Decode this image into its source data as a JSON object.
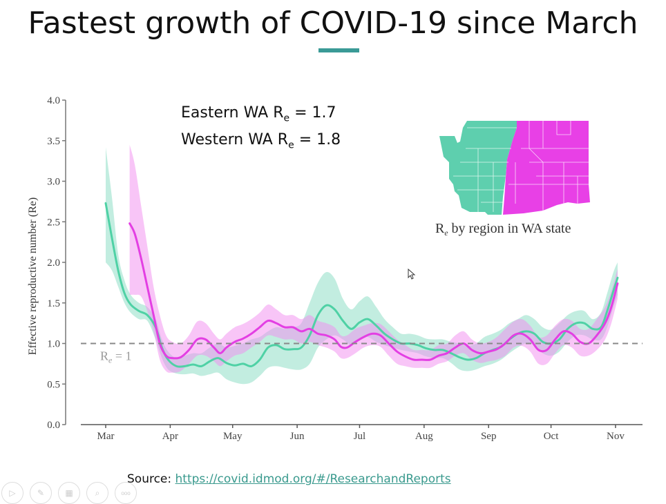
{
  "slide": {
    "title": "Fastest growth of COVID-19 since March",
    "accent_color": "#3a9a96",
    "annotation": {
      "eastern": {
        "prefix": "Eastern WA R",
        "sub": "e",
        "suffix": " = 1.7"
      },
      "western": {
        "prefix": "Western WA R",
        "sub": "e",
        "suffix": " = 1.8"
      }
    },
    "map_caption": {
      "prefix": "R",
      "sub": "e",
      "suffix": " by region in WA state"
    },
    "source": {
      "label": "Source: ",
      "link": "https://covid.idmod.org/#/ResearchandReports"
    },
    "toolbar": [
      {
        "name": "play-icon",
        "glyph": "▷"
      },
      {
        "name": "pen-icon",
        "glyph": "✎"
      },
      {
        "name": "slides-grid-icon",
        "glyph": "▦"
      },
      {
        "name": "zoom-icon",
        "glyph": "⌕"
      },
      {
        "name": "more-options-icon",
        "glyph": "ooo"
      }
    ]
  },
  "chart_data": {
    "type": "line",
    "title": "",
    "xlabel": "",
    "ylabel": "Effective reproductive number (Re)",
    "ylim": [
      0,
      4
    ],
    "yticks": [
      "0.0",
      "0.5",
      "1.0",
      "1.5",
      "2.0",
      "2.5",
      "3.0",
      "3.5",
      "4.0"
    ],
    "x_unit": "days since Mar 1",
    "xlim": [
      -12,
      258
    ],
    "xticks": [
      {
        "label": "Mar",
        "day": 0
      },
      {
        "label": "Apr",
        "day": 31
      },
      {
        "label": "May",
        "day": 61
      },
      {
        "label": "Jun",
        "day": 92
      },
      {
        "label": "Jul",
        "day": 122
      },
      {
        "label": "Aug",
        "day": 153
      },
      {
        "label": "Sep",
        "day": 184
      },
      {
        "label": "Oct",
        "day": 214
      },
      {
        "label": "Nov",
        "day": 245
      }
    ],
    "reference_line": {
      "y": 1.0,
      "label": "R",
      "label_sub": "e",
      "label_suffix": " = 1"
    },
    "grid": false,
    "series": [
      {
        "name": "Western WA",
        "color": "#4fd1a5",
        "band_color": "#5ecfae",
        "points": [
          [
            0,
            2.73,
            2.0,
            3.42
          ],
          [
            3,
            2.3,
            1.9,
            2.8
          ],
          [
            6,
            1.9,
            1.7,
            2.1
          ],
          [
            9,
            1.62,
            1.5,
            1.78
          ],
          [
            12,
            1.48,
            1.38,
            1.6
          ],
          [
            16,
            1.4,
            1.3,
            1.5
          ],
          [
            20,
            1.35,
            1.28,
            1.45
          ],
          [
            24,
            1.2,
            1.05,
            1.3
          ],
          [
            27,
            0.95,
            0.82,
            1.05
          ],
          [
            30,
            0.8,
            0.68,
            0.9
          ],
          [
            34,
            0.72,
            0.63,
            0.82
          ],
          [
            38,
            0.72,
            0.62,
            0.85
          ],
          [
            42,
            0.74,
            0.63,
            0.88
          ],
          [
            46,
            0.72,
            0.6,
            0.88
          ],
          [
            50,
            0.78,
            0.62,
            0.95
          ],
          [
            54,
            0.82,
            0.64,
            1.0
          ],
          [
            58,
            0.76,
            0.56,
            0.95
          ],
          [
            62,
            0.73,
            0.52,
            0.97
          ],
          [
            66,
            0.75,
            0.5,
            1.0
          ],
          [
            70,
            0.72,
            0.52,
            1.05
          ],
          [
            74,
            0.8,
            0.6,
            1.08
          ],
          [
            78,
            0.95,
            0.7,
            1.15
          ],
          [
            82,
            0.98,
            0.72,
            1.2
          ],
          [
            86,
            0.93,
            0.7,
            1.18
          ],
          [
            90,
            0.93,
            0.68,
            1.2
          ],
          [
            94,
            0.95,
            0.68,
            1.25
          ],
          [
            98,
            1.1,
            0.75,
            1.5
          ],
          [
            102,
            1.35,
            0.95,
            1.75
          ],
          [
            106,
            1.47,
            1.05,
            1.88
          ],
          [
            110,
            1.42,
            1.1,
            1.8
          ],
          [
            114,
            1.28,
            1.05,
            1.55
          ],
          [
            118,
            1.18,
            0.98,
            1.42
          ],
          [
            122,
            1.26,
            1.05,
            1.52
          ],
          [
            126,
            1.3,
            1.08,
            1.58
          ],
          [
            130,
            1.22,
            1.02,
            1.45
          ],
          [
            134,
            1.12,
            0.98,
            1.3
          ],
          [
            138,
            1.05,
            0.95,
            1.2
          ],
          [
            142,
            1.0,
            0.92,
            1.12
          ],
          [
            146,
            1.0,
            0.9,
            1.12
          ],
          [
            150,
            0.98,
            0.88,
            1.1
          ],
          [
            154,
            0.94,
            0.84,
            1.06
          ],
          [
            158,
            0.92,
            0.82,
            1.05
          ],
          [
            162,
            0.92,
            0.82,
            1.05
          ],
          [
            166,
            0.88,
            0.76,
            1.02
          ],
          [
            170,
            0.83,
            0.68,
            1.0
          ],
          [
            174,
            0.8,
            0.66,
            0.97
          ],
          [
            178,
            0.82,
            0.68,
            1.0
          ],
          [
            182,
            0.88,
            0.72,
            1.08
          ],
          [
            186,
            0.92,
            0.75,
            1.12
          ],
          [
            190,
            0.96,
            0.8,
            1.17
          ],
          [
            194,
            1.05,
            0.88,
            1.25
          ],
          [
            198,
            1.12,
            0.95,
            1.3
          ],
          [
            202,
            1.15,
            1.0,
            1.35
          ],
          [
            206,
            1.12,
            0.98,
            1.3
          ],
          [
            210,
            1.02,
            0.88,
            1.2
          ],
          [
            214,
            1.0,
            0.85,
            1.17
          ],
          [
            218,
            1.05,
            0.9,
            1.25
          ],
          [
            222,
            1.18,
            1.02,
            1.35
          ],
          [
            226,
            1.25,
            1.1,
            1.4
          ],
          [
            230,
            1.25,
            1.1,
            1.4
          ],
          [
            234,
            1.18,
            1.05,
            1.3
          ],
          [
            238,
            1.2,
            1.05,
            1.38
          ],
          [
            241,
            1.4,
            1.2,
            1.62
          ],
          [
            244,
            1.65,
            1.45,
            1.88
          ],
          [
            246,
            1.81,
            1.6,
            2.0
          ]
        ]
      },
      {
        "name": "Eastern WA",
        "color": "#e33fe3",
        "band_color": "#f28cf0",
        "points": [
          [
            11.5,
            2.48,
            1.6,
            3.45
          ],
          [
            14,
            2.35,
            1.6,
            3.2
          ],
          [
            17,
            2.05,
            1.58,
            2.7
          ],
          [
            20,
            1.7,
            1.4,
            2.2
          ],
          [
            23,
            1.35,
            1.15,
            1.7
          ],
          [
            26,
            1.0,
            0.8,
            1.35
          ],
          [
            29,
            0.85,
            0.66,
            1.1
          ],
          [
            32,
            0.82,
            0.64,
            1.02
          ],
          [
            36,
            0.83,
            0.66,
            1.0
          ],
          [
            40,
            0.92,
            0.75,
            1.1
          ],
          [
            44,
            1.05,
            0.85,
            1.27
          ],
          [
            48,
            1.05,
            0.85,
            1.25
          ],
          [
            52,
            0.95,
            0.78,
            1.12
          ],
          [
            55,
            0.88,
            0.72,
            1.05
          ],
          [
            58,
            0.95,
            0.78,
            1.12
          ],
          [
            62,
            1.02,
            0.85,
            1.2
          ],
          [
            66,
            1.06,
            0.88,
            1.24
          ],
          [
            70,
            1.12,
            0.95,
            1.3
          ],
          [
            74,
            1.2,
            1.02,
            1.38
          ],
          [
            78,
            1.28,
            1.1,
            1.48
          ],
          [
            82,
            1.25,
            1.08,
            1.42
          ],
          [
            86,
            1.2,
            1.05,
            1.35
          ],
          [
            90,
            1.2,
            1.05,
            1.35
          ],
          [
            94,
            1.15,
            1.0,
            1.3
          ],
          [
            98,
            1.18,
            1.02,
            1.35
          ],
          [
            102,
            1.12,
            0.98,
            1.28
          ],
          [
            106,
            1.1,
            0.95,
            1.25
          ],
          [
            110,
            1.05,
            0.9,
            1.2
          ],
          [
            113,
            0.96,
            0.82,
            1.1
          ],
          [
            116,
            0.95,
            0.82,
            1.1
          ],
          [
            120,
            1.02,
            0.88,
            1.18
          ],
          [
            124,
            1.08,
            0.95,
            1.22
          ],
          [
            128,
            1.12,
            0.98,
            1.25
          ],
          [
            132,
            1.1,
            0.96,
            1.24
          ],
          [
            136,
            1.0,
            0.85,
            1.15
          ],
          [
            140,
            0.9,
            0.75,
            1.05
          ],
          [
            144,
            0.84,
            0.72,
            0.98
          ],
          [
            148,
            0.8,
            0.7,
            0.92
          ],
          [
            152,
            0.8,
            0.7,
            0.92
          ],
          [
            156,
            0.8,
            0.7,
            0.92
          ],
          [
            160,
            0.85,
            0.75,
            0.98
          ],
          [
            164,
            0.88,
            0.78,
            1.0
          ],
          [
            168,
            0.95,
            0.85,
            1.1
          ],
          [
            172,
            1.0,
            0.88,
            1.15
          ],
          [
            176,
            0.92,
            0.8,
            1.05
          ],
          [
            180,
            0.88,
            0.76,
            1.0
          ],
          [
            184,
            0.9,
            0.78,
            1.02
          ],
          [
            188,
            0.93,
            0.8,
            1.08
          ],
          [
            192,
            1.0,
            0.85,
            1.18
          ],
          [
            196,
            1.1,
            0.95,
            1.27
          ],
          [
            200,
            1.12,
            0.97,
            1.3
          ],
          [
            204,
            1.05,
            0.9,
            1.22
          ],
          [
            208,
            0.92,
            0.75,
            1.08
          ],
          [
            212,
            0.92,
            0.75,
            1.1
          ],
          [
            216,
            1.05,
            0.88,
            1.22
          ],
          [
            220,
            1.15,
            0.98,
            1.3
          ],
          [
            224,
            1.12,
            0.95,
            1.28
          ],
          [
            228,
            1.02,
            0.85,
            1.18
          ],
          [
            232,
            1.0,
            0.85,
            1.18
          ],
          [
            236,
            1.1,
            0.92,
            1.3
          ],
          [
            240,
            1.25,
            1.05,
            1.45
          ],
          [
            243,
            1.45,
            1.25,
            1.65
          ],
          [
            246,
            1.74,
            1.55,
            1.92
          ]
        ]
      }
    ]
  }
}
